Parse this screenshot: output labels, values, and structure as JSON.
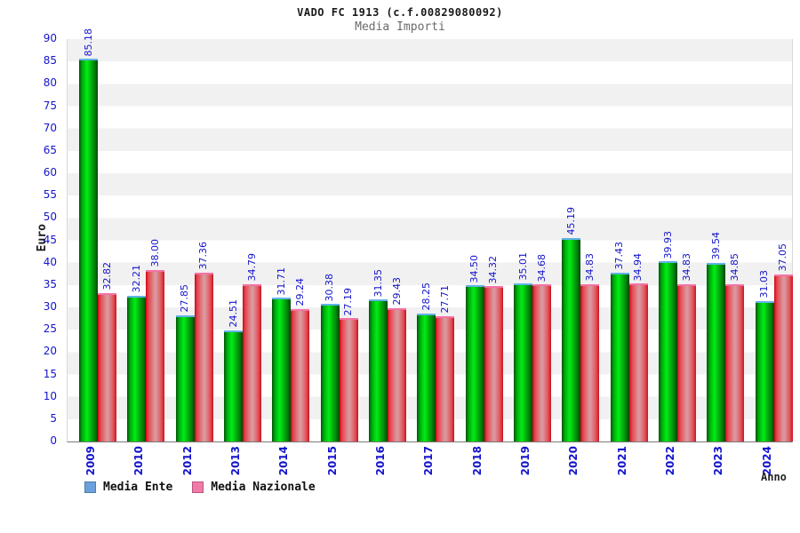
{
  "chart": {
    "title": "VADO FC 1913 (c.f.00829080092)",
    "subtitle": "Media Importi",
    "ylabel": "Euro",
    "xlabel": "Anno"
  },
  "legend": {
    "items": [
      {
        "label": "Media Ente",
        "swatch_color": "#6ca0dc"
      },
      {
        "label": "Media Nazionale",
        "swatch_color": "#ee7aa8"
      }
    ]
  },
  "chart_data": {
    "type": "bar",
    "title": "VADO FC 1913 (c.f.00829080092)",
    "subtitle": "Media Importi",
    "xlabel": "Anno",
    "ylabel": "Euro",
    "ylim": [
      0,
      90
    ],
    "ytick_step": 5,
    "grid": "horizontal-bands",
    "legend_position": "bottom-left",
    "categories": [
      "2009",
      "2010",
      "2012",
      "2013",
      "2014",
      "2015",
      "2016",
      "2017",
      "2018",
      "2019",
      "2020",
      "2021",
      "2022",
      "2023",
      "2024"
    ],
    "series": [
      {
        "name": "Media Ente",
        "bar_color": "green",
        "legend_color": "#6ca0dc",
        "values": [
          85.18,
          32.21,
          27.85,
          24.51,
          31.71,
          30.38,
          31.35,
          28.25,
          34.5,
          35.01,
          45.19,
          37.43,
          39.93,
          39.54,
          31.03
        ]
      },
      {
        "name": "Media Nazionale",
        "bar_color": "red",
        "legend_color": "#ee7aa8",
        "values": [
          32.82,
          38.0,
          37.36,
          34.79,
          29.24,
          27.19,
          29.43,
          27.71,
          34.32,
          34.68,
          34.83,
          34.94,
          34.83,
          34.85,
          37.05
        ]
      }
    ],
    "label_color": "#1414cc",
    "value_label_format": "0.00"
  }
}
